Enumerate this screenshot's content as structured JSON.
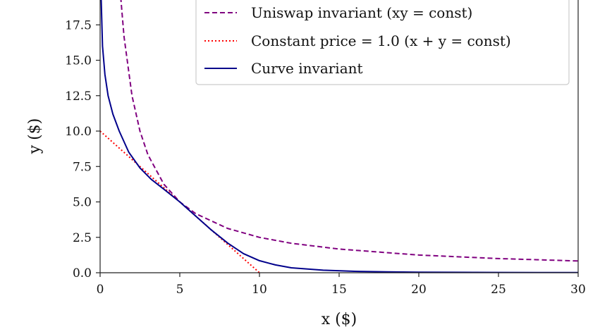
{
  "chart_data": {
    "type": "line",
    "xlabel": "x ($)",
    "ylabel": "y ($)",
    "xlim": [
      0,
      30
    ],
    "ylim": [
      0,
      20
    ],
    "x_ticks": [
      0,
      5,
      10,
      15,
      20,
      25,
      30
    ],
    "y_ticks": [
      0.0,
      2.5,
      5.0,
      7.5,
      10.0,
      12.5,
      15.0,
      17.5
    ],
    "x_tick_labels": [
      "0",
      "5",
      "10",
      "15",
      "20",
      "25",
      "30"
    ],
    "y_tick_labels": [
      "0.0",
      "2.5",
      "5.0",
      "7.5",
      "10.0",
      "12.5",
      "15.0",
      "17.5"
    ],
    "grid": false,
    "legend_position": "top-right",
    "series": [
      {
        "name": "Uniswap invariant (xy = const)",
        "color": "#800080",
        "style": "dashed",
        "x": [
          1.25,
          1.5,
          2,
          2.5,
          3,
          4,
          5,
          6,
          8,
          10,
          12,
          15,
          20,
          25,
          30
        ],
        "y": [
          20,
          16.67,
          12.5,
          10,
          8.33,
          6.25,
          5,
          4.17,
          3.13,
          2.5,
          2.08,
          1.67,
          1.25,
          1.0,
          0.83
        ]
      },
      {
        "name": "Constant price = 1.0 (x + y = const)",
        "color": "#ff0000",
        "style": "dotted",
        "x": [
          0,
          2,
          4,
          6,
          8,
          10
        ],
        "y": [
          10,
          8,
          6,
          4,
          2,
          0
        ]
      },
      {
        "name": "Curve invariant",
        "color": "#00008b",
        "style": "solid",
        "x": [
          0.05,
          0.15,
          0.3,
          0.5,
          0.8,
          1.2,
          1.8,
          2.5,
          3.2,
          4.0,
          5.0,
          6.0,
          7.0,
          8.0,
          9.0,
          10.0,
          11.0,
          12.0,
          14.0,
          16.0,
          18.0,
          20.0,
          22.0,
          25.0,
          30.0
        ],
        "y": [
          20.0,
          16.0,
          14.0,
          12.5,
          11.2,
          10.0,
          8.5,
          7.4,
          6.6,
          5.9,
          5.0,
          4.0,
          3.0,
          2.1,
          1.35,
          0.85,
          0.55,
          0.35,
          0.18,
          0.1,
          0.06,
          0.04,
          0.03,
          0.02,
          0.01
        ]
      }
    ],
    "legend": {
      "entries": [
        {
          "text": "Uniswap invariant (xy = const)"
        },
        {
          "text": "Constant price = 1.0 (x + y = const)"
        },
        {
          "text": "Curve invariant"
        }
      ]
    }
  }
}
